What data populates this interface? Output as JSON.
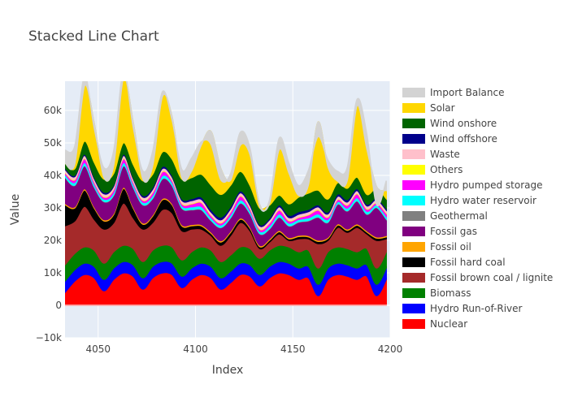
{
  "chart_data": {
    "type": "area",
    "title": "Stacked Line Chart",
    "xlabel": "Index",
    "ylabel": "Value",
    "xlim": [
      4033,
      4200
    ],
    "ylim": [
      -10000,
      69000
    ],
    "x_ticks": [
      4050,
      4100,
      4150,
      4200
    ],
    "x_tick_labels": [
      "4050",
      "4100",
      "4150",
      "4200"
    ],
    "y_ticks": [
      -10000,
      0,
      10000,
      20000,
      30000,
      40000,
      50000,
      60000
    ],
    "y_tick_labels": [
      "−10k",
      "0",
      "10k",
      "20k",
      "30k",
      "40k",
      "50k",
      "60k"
    ],
    "grid": true,
    "legend_position": "right",
    "background_color": "#e5ecf6",
    "x": [
      4033,
      4038,
      4043,
      4048,
      4053,
      4058,
      4063,
      4068,
      4073,
      4078,
      4083,
      4088,
      4093,
      4098,
      4103,
      4108,
      4113,
      4118,
      4123,
      4128,
      4133,
      4138,
      4143,
      4148,
      4153,
      4158,
      4163,
      4168,
      4173,
      4178,
      4183,
      4188,
      4193,
      4198
    ],
    "series": [
      {
        "name": "Nuclear",
        "color": "#ff0000",
        "values": [
          4000,
          7500,
          9500,
          8500,
          4500,
          8000,
          10000,
          9000,
          5000,
          8500,
          10000,
          9500,
          5500,
          8000,
          9500,
          8500,
          5000,
          7000,
          9500,
          9000,
          6000,
          8500,
          10000,
          9500,
          8000,
          8500,
          3000,
          8000,
          9500,
          9000,
          8000,
          9000,
          3000,
          8000
        ]
      },
      {
        "name": "Hydro Run-of-River",
        "color": "#0000ff",
        "values": [
          3500,
          3500,
          3500,
          3500,
          3500,
          3500,
          3500,
          3500,
          3500,
          3500,
          3500,
          3500,
          3500,
          3500,
          3500,
          3500,
          3500,
          3500,
          3500,
          3500,
          3500,
          3500,
          3500,
          3500,
          3500,
          3500,
          3500,
          3500,
          3500,
          3500,
          3500,
          3500,
          3500,
          3500
        ]
      },
      {
        "name": "Biomass",
        "color": "#008000",
        "values": [
          5000,
          5000,
          5000,
          5000,
          5000,
          5000,
          5000,
          5000,
          5000,
          5000,
          5000,
          5000,
          5000,
          5000,
          5000,
          5000,
          5000,
          5000,
          5000,
          5000,
          5000,
          5000,
          5000,
          5000,
          5000,
          5000,
          5000,
          5000,
          5000,
          5000,
          5000,
          5000,
          5000,
          5000
        ]
      },
      {
        "name": "Fossil brown coal / lignite",
        "color": "#a52a2a",
        "values": [
          12000,
          10000,
          12500,
          9500,
          10500,
          9000,
          13000,
          9500,
          10000,
          8500,
          11000,
          10500,
          9000,
          7000,
          5500,
          4500,
          5000,
          6000,
          7500,
          5500,
          3000,
          2500,
          3500,
          2000,
          4000,
          3500,
          7500,
          3500,
          6000,
          5000,
          7500,
          4500,
          8500,
          4000
        ]
      },
      {
        "name": "Fossil hard coal",
        "color": "#000000",
        "values": [
          6500,
          4000,
          5000,
          3500,
          2500,
          2500,
          4500,
          3000,
          1500,
          2000,
          3000,
          2500,
          1500,
          1000,
          1000,
          700,
          1000,
          1000,
          1000,
          800,
          600,
          600,
          700,
          500,
          700,
          600,
          700,
          600,
          700,
          600,
          700,
          600,
          700,
          600
        ]
      },
      {
        "name": "Fossil oil",
        "color": "#ffa500",
        "values": [
          400,
          400,
          400,
          400,
          400,
          400,
          400,
          400,
          400,
          400,
          400,
          400,
          400,
          400,
          400,
          400,
          400,
          400,
          400,
          400,
          400,
          400,
          400,
          400,
          400,
          400,
          400,
          400,
          400,
          400,
          400,
          400,
          400,
          400
        ]
      },
      {
        "name": "Fossil gas",
        "color": "#800080",
        "values": [
          8000,
          6500,
          7000,
          6000,
          5500,
          5500,
          6500,
          6000,
          5500,
          5000,
          6000,
          5500,
          5000,
          4500,
          4500,
          3500,
          4000,
          4000,
          4500,
          4000,
          3500,
          3000,
          4000,
          3500,
          4000,
          4500,
          7000,
          4500,
          6000,
          5500,
          7000,
          5000,
          9000,
          5000
        ]
      },
      {
        "name": "Geothermal",
        "color": "#808080",
        "values": [
          150,
          150,
          150,
          150,
          150,
          150,
          150,
          150,
          150,
          150,
          150,
          150,
          150,
          150,
          150,
          150,
          150,
          150,
          150,
          150,
          150,
          150,
          150,
          150,
          150,
          150,
          150,
          150,
          150,
          150,
          150,
          150,
          150,
          150
        ]
      },
      {
        "name": "Hydro water reservoir",
        "color": "#00ffff",
        "values": [
          800,
          800,
          900,
          800,
          700,
          800,
          900,
          800,
          700,
          800,
          900,
          800,
          700,
          800,
          900,
          800,
          700,
          800,
          900,
          800,
          700,
          800,
          900,
          800,
          700,
          800,
          900,
          800,
          700,
          800,
          900,
          800,
          700,
          800
        ]
      },
      {
        "name": "Hydro pumped storage",
        "color": "#ff00ff",
        "values": [
          500,
          800,
          1200,
          700,
          600,
          900,
          1200,
          700,
          600,
          900,
          1200,
          700,
          600,
          900,
          1200,
          700,
          600,
          900,
          1200,
          700,
          600,
          900,
          1200,
          700,
          600,
          900,
          1200,
          700,
          600,
          900,
          1200,
          700,
          600,
          900
        ]
      },
      {
        "name": "Others",
        "color": "#ffff00",
        "values": [
          200,
          200,
          200,
          200,
          200,
          200,
          200,
          200,
          200,
          200,
          200,
          200,
          200,
          200,
          200,
          200,
          200,
          200,
          200,
          200,
          200,
          200,
          200,
          200,
          200,
          200,
          200,
          200,
          200,
          200,
          200,
          200,
          200,
          200
        ]
      },
      {
        "name": "Waste",
        "color": "#ffc0cb",
        "values": [
          800,
          800,
          800,
          800,
          800,
          800,
          800,
          800,
          800,
          800,
          800,
          800,
          800,
          800,
          800,
          800,
          800,
          800,
          800,
          800,
          800,
          800,
          800,
          800,
          800,
          800,
          800,
          800,
          800,
          800,
          800,
          800,
          800,
          800
        ]
      },
      {
        "name": "Wind offshore",
        "color": "#00008b",
        "values": [
          400,
          400,
          400,
          500,
          500,
          400,
          400,
          400,
          500,
          600,
          600,
          500,
          500,
          600,
          700,
          800,
          800,
          700,
          600,
          600,
          500,
          500,
          600,
          700,
          800,
          700,
          600,
          600,
          700,
          700,
          600,
          500,
          500,
          500
        ]
      },
      {
        "name": "Wind onshore",
        "color": "#006400",
        "values": [
          1500,
          2000,
          4000,
          4500,
          4000,
          3500,
          3500,
          4000,
          4500,
          4000,
          4500,
          5000,
          6000,
          6500,
          7000,
          7500,
          7000,
          6500,
          6000,
          5500,
          5000,
          4000,
          3000,
          3500,
          4500,
          5000,
          4500,
          4000,
          3500,
          3500,
          3500,
          3000,
          3000,
          3000
        ]
      },
      {
        "name": "Solar",
        "color": "#ffd700",
        "values": [
          0,
          1500,
          17000,
          12000,
          500,
          2500,
          20000,
          13000,
          500,
          2500,
          17000,
          13000,
          500,
          2000,
          9000,
          16500,
          8000,
          1500,
          8000,
          9500,
          1000,
          500,
          14000,
          9500,
          500,
          2500,
          21000,
          10000,
          500,
          2500,
          22000,
          14000,
          500,
          2500
        ]
      },
      {
        "name": "Import Balance",
        "color": "#d3d3d3",
        "values": [
          4000,
          5500,
          3000,
          -1500,
          3000,
          4500,
          2000,
          -1500,
          2500,
          4500,
          1500,
          -1000,
          2500,
          4000,
          1000,
          -4000,
          -3500,
          2000,
          4000,
          2000,
          -500,
          1000,
          3500,
          3000,
          3000,
          4500,
          -4500,
          2000,
          3000,
          4000,
          2000,
          4500,
          -5500,
          3000
        ]
      }
    ]
  }
}
